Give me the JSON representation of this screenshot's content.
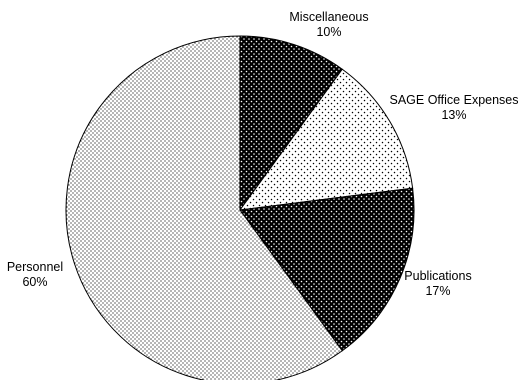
{
  "chart_data": {
    "type": "pie",
    "title": "",
    "slices": [
      {
        "label": "Miscellaneous",
        "value": 10,
        "value_label": "10%",
        "pattern": "dense-dots-dark"
      },
      {
        "label": "SAGE Office Expenses",
        "value": 13,
        "value_label": "13%",
        "pattern": "sparse-dots-light"
      },
      {
        "label": "Publications",
        "value": 17,
        "value_label": "17%",
        "pattern": "dense-dots-dark"
      },
      {
        "label": "Personnel",
        "value": 60,
        "value_label": "60%",
        "pattern": "fine-dots-light"
      }
    ],
    "start_angle": "12 o'clock",
    "direction": "clockwise",
    "legend": "none (direct labels)"
  },
  "colors": {
    "background": "#ffffff",
    "stroke": "#000000",
    "dark_fill": "#000000",
    "light_fill": "#ffffff"
  }
}
